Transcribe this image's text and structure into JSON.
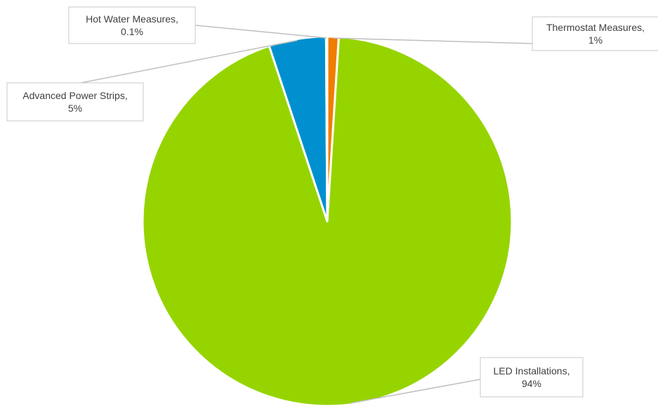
{
  "chart_data": {
    "type": "pie",
    "title": "",
    "slices": [
      {
        "name": "Thermostat Measures",
        "value": 1,
        "label": "1%",
        "color": "#F07D00"
      },
      {
        "name": "LED Installations",
        "value": 94,
        "label": "94%",
        "color": "#96D400"
      },
      {
        "name": "Advanced Power Strips",
        "value": 5,
        "label": "5%",
        "color": "#0090D0"
      },
      {
        "name": "Hot Water Measures",
        "value": 0.1,
        "label": "0.1%",
        "color": "#808080"
      }
    ],
    "start_angle_deg": 0,
    "direction": "clockwise",
    "data_labels": "category name and percentage, with leader lines"
  }
}
